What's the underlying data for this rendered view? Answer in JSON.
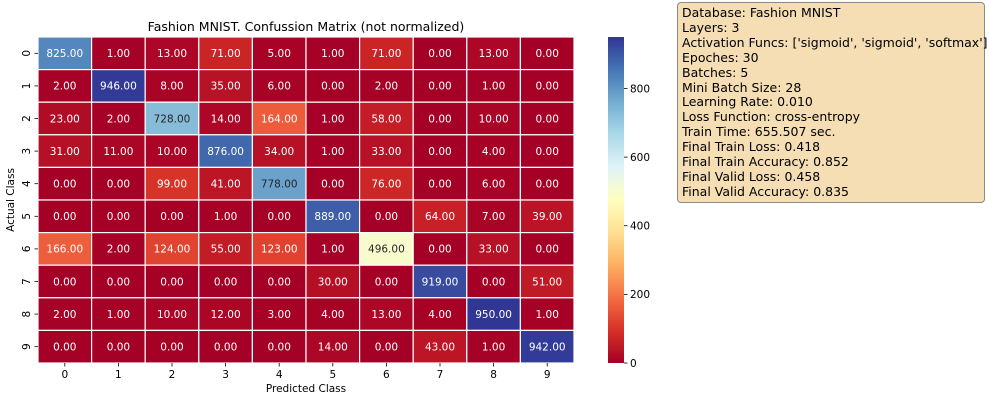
{
  "chart_data": {
    "type": "heatmap",
    "title": "Fashion MNIST. Confussion Matrix (not normalized)",
    "xlabel": "Predicted Class",
    "ylabel": "Actual Class",
    "x_categories": [
      "0",
      "1",
      "2",
      "3",
      "4",
      "5",
      "6",
      "7",
      "8",
      "9"
    ],
    "y_categories": [
      "0",
      "1",
      "2",
      "3",
      "4",
      "5",
      "6",
      "7",
      "8",
      "9"
    ],
    "values": [
      [
        825,
        1,
        13,
        71,
        5,
        1,
        71,
        0,
        13,
        0
      ],
      [
        2,
        946,
        8,
        35,
        6,
        0,
        2,
        0,
        1,
        0
      ],
      [
        23,
        2,
        728,
        14,
        164,
        1,
        58,
        0,
        10,
        0
      ],
      [
        31,
        11,
        10,
        876,
        34,
        1,
        33,
        0,
        4,
        0
      ],
      [
        0,
        0,
        99,
        41,
        778,
        0,
        76,
        0,
        6,
        0
      ],
      [
        0,
        0,
        0,
        1,
        0,
        889,
        0,
        64,
        7,
        39
      ],
      [
        166,
        2,
        124,
        55,
        123,
        1,
        496,
        0,
        33,
        0
      ],
      [
        0,
        0,
        0,
        0,
        0,
        30,
        0,
        919,
        0,
        51
      ],
      [
        2,
        1,
        10,
        12,
        3,
        4,
        13,
        4,
        950,
        1
      ],
      [
        0,
        0,
        0,
        0,
        0,
        14,
        0,
        43,
        1,
        942
      ]
    ],
    "cell_format": "2 decimals",
    "colormap": "RdYlBu",
    "colorbar": {
      "min": 0,
      "max": 950,
      "ticks": [
        0,
        200,
        400,
        600,
        800
      ]
    },
    "grid": true,
    "grid_color": "#ffffff"
  },
  "info_box": {
    "lines": [
      "Database: Fashion MNIST",
      "Layers: 3",
      "Activation Funcs: ['sigmoid', 'sigmoid', 'softmax']",
      "Epoches: 30",
      "Batches: 5",
      "Mini Batch Size: 28",
      "Learning Rate: 0.010",
      "Loss Function: cross-entropy",
      "Train Time: 655.507 sec.",
      "Final Train Loss: 0.418",
      "Final Train Accuracy: 0.852",
      "Final Valid Loss: 0.458",
      "Final Valid Accuracy: 0.835"
    ],
    "background": "#f5deb3",
    "border": "#8a8a8a"
  }
}
